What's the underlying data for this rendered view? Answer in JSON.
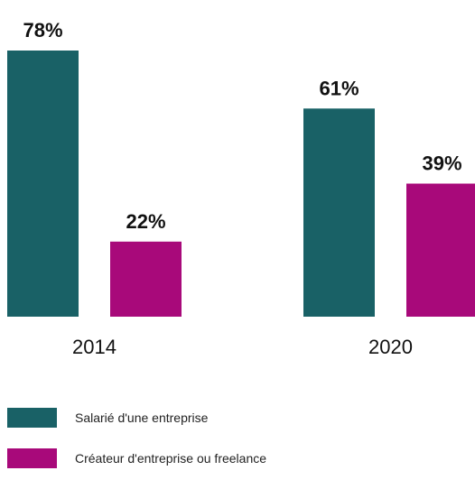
{
  "chart_data": {
    "type": "bar",
    "categories": [
      "2014",
      "2020"
    ],
    "series": [
      {
        "name": "Salarié d'une entreprise",
        "values": [
          78,
          61
        ],
        "value_labels": [
          "78%",
          "61%"
        ],
        "color": "#196166"
      },
      {
        "name": "Créateur d'entreprise ou freelance",
        "values": [
          22,
          39
        ],
        "value_labels": [
          "22%",
          "39%"
        ],
        "color": "#a8097a"
      }
    ],
    "ylim": [
      0,
      78
    ],
    "grid": false,
    "legend_position": "bottom-left"
  }
}
